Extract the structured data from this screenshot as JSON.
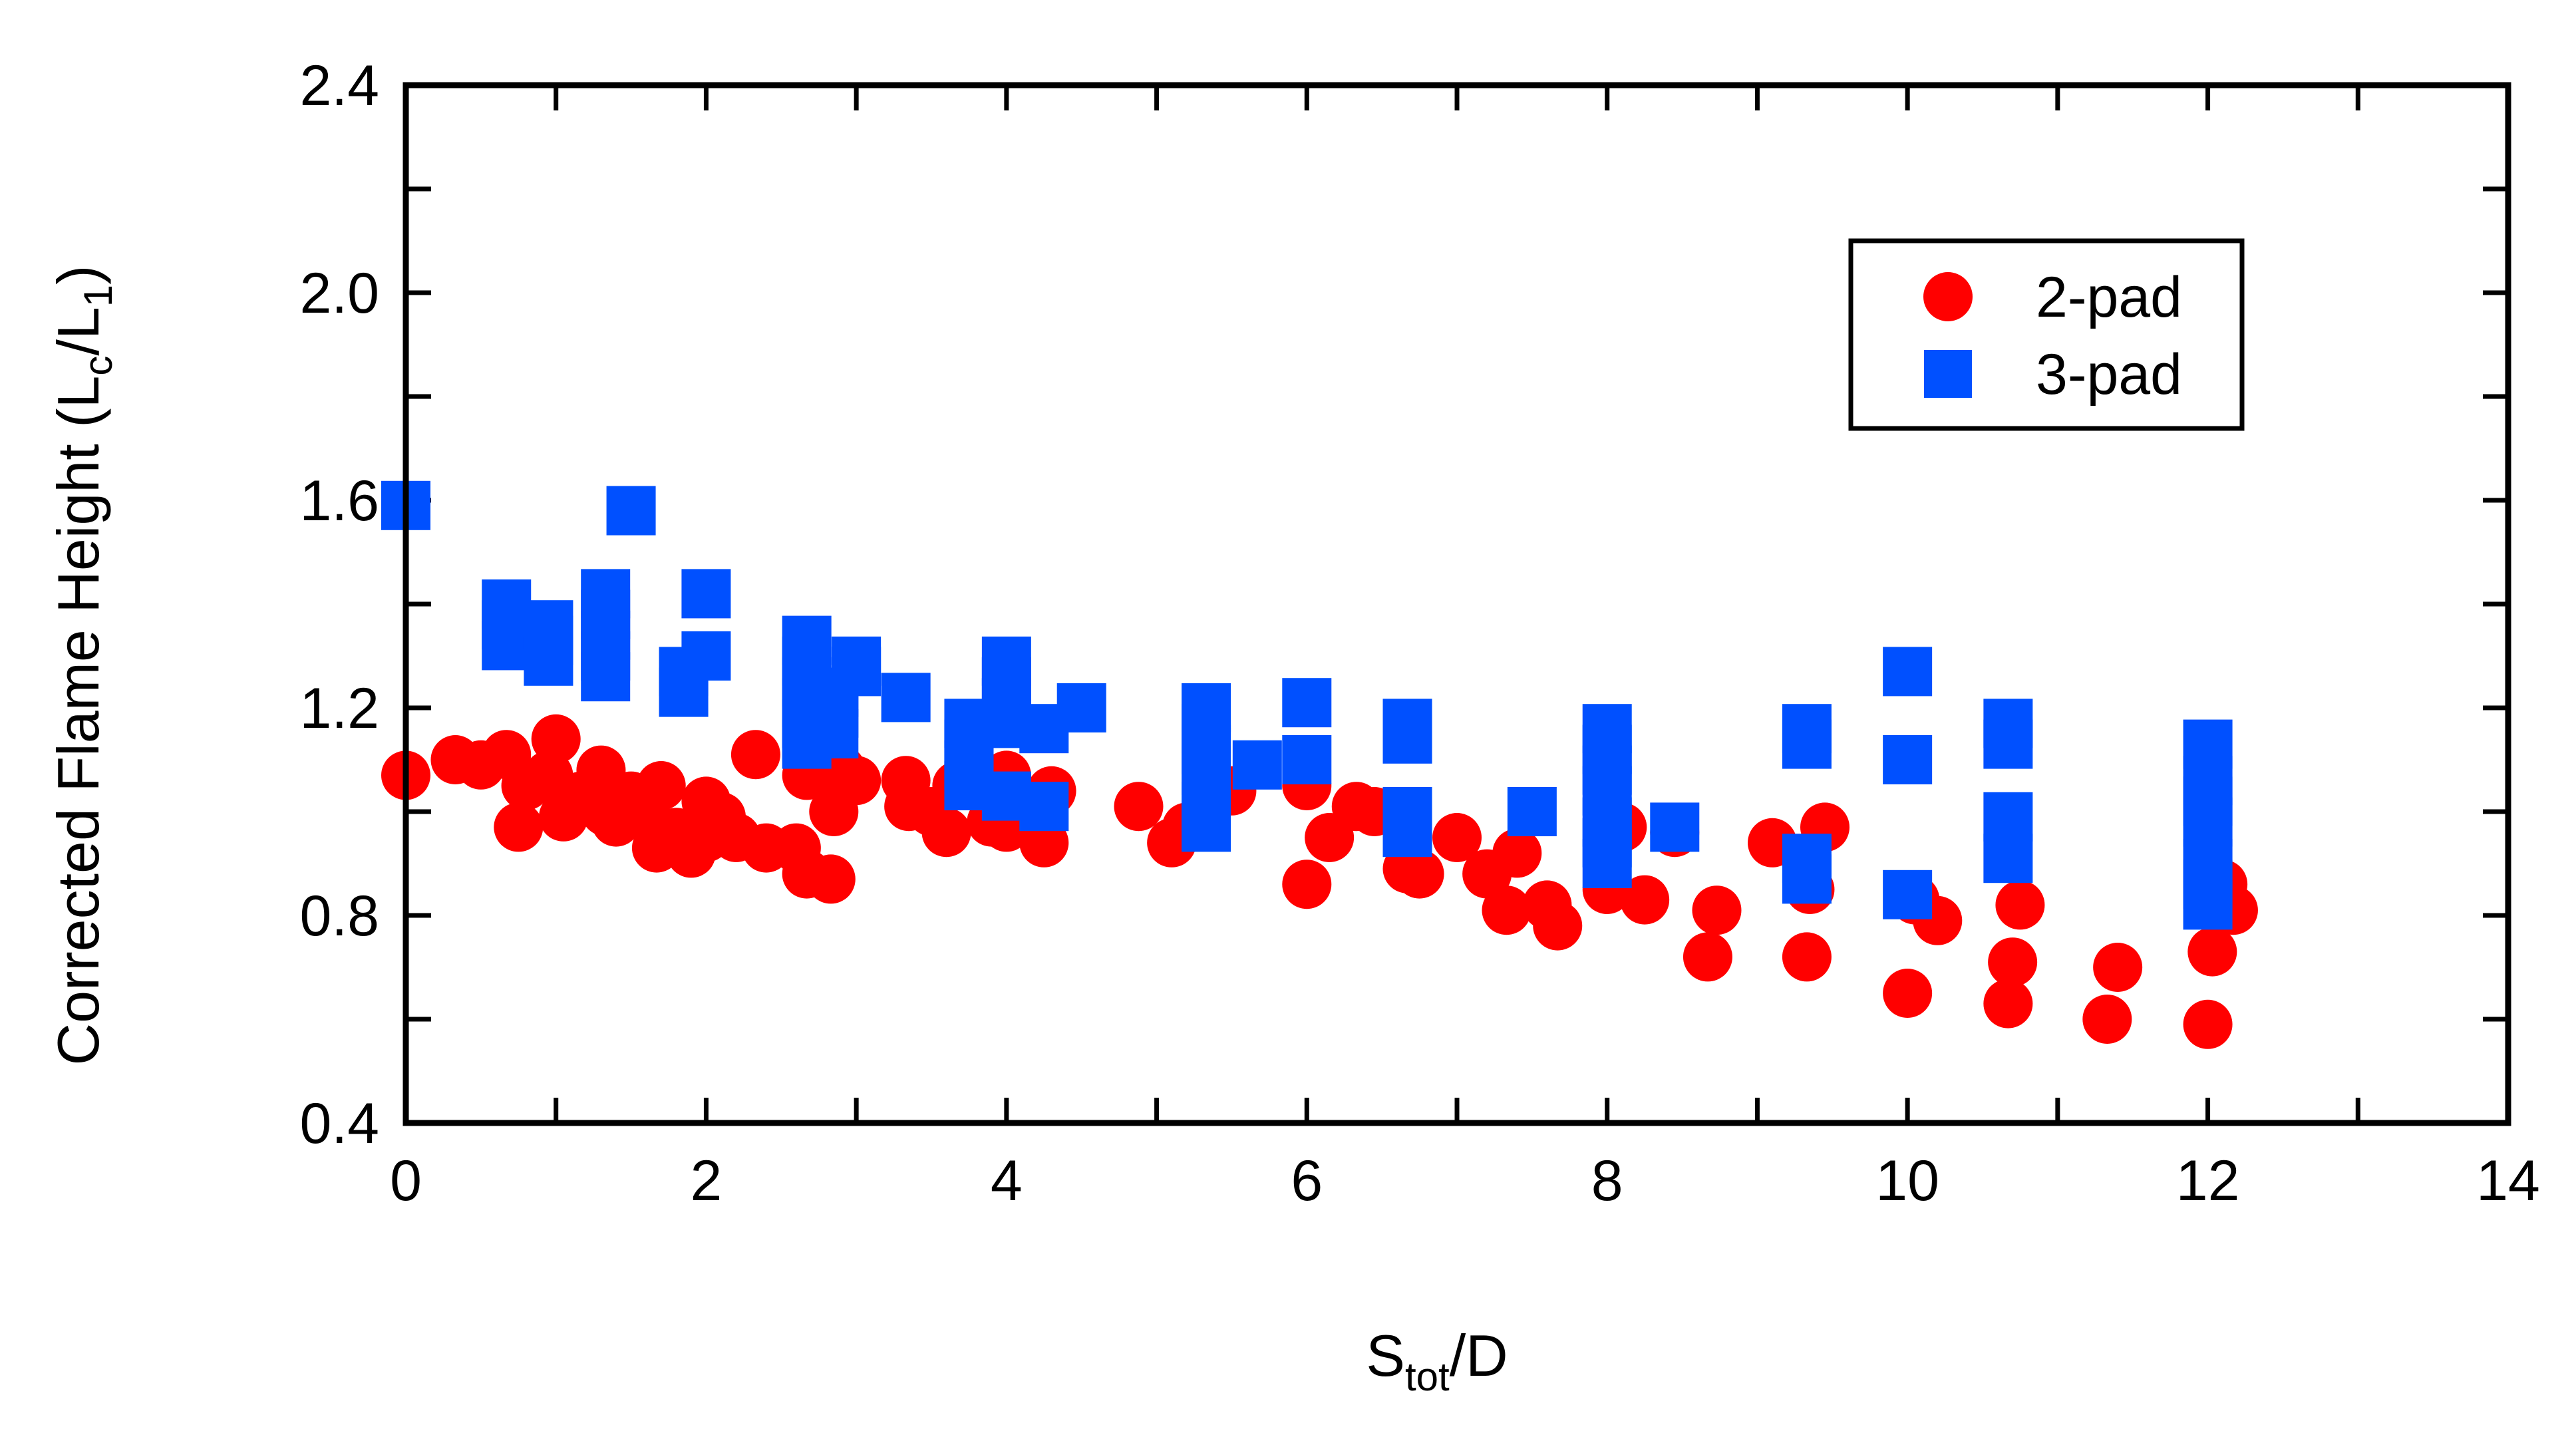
{
  "chart_data": {
    "type": "scatter",
    "xlabel": {
      "main": "S",
      "sub": "tot",
      "rest": "/D"
    },
    "ylabel": {
      "p1": "Corrected Flame Height (L",
      "s1": "c",
      "p2": "/L",
      "s2": "1",
      "p3": ")"
    },
    "xlim": [
      0,
      14
    ],
    "ylim": [
      0.4,
      2.4
    ],
    "xticks": [
      0,
      2,
      4,
      6,
      8,
      10,
      12,
      14
    ],
    "yticks": [
      0.4,
      0.8,
      1.2,
      1.6,
      2.0,
      2.4
    ],
    "xtick_labels": [
      "0",
      "2",
      "4",
      "6",
      "8",
      "10",
      "12",
      "14"
    ],
    "ytick_labels": [
      "0.4",
      "0.8",
      "1.2",
      "1.6",
      "2.0",
      "2.4"
    ],
    "grid": false,
    "legend_position": "top-right",
    "series": [
      {
        "name": "2-pad",
        "marker": "circle",
        "color": "#ff0000",
        "points": [
          [
            0.0,
            1.07
          ],
          [
            0.33,
            1.1
          ],
          [
            0.5,
            1.09
          ],
          [
            0.67,
            1.11
          ],
          [
            0.75,
            0.97
          ],
          [
            0.8,
            1.05
          ],
          [
            0.95,
            1.07
          ],
          [
            1.0,
            1.14
          ],
          [
            1.05,
            0.99
          ],
          [
            1.17,
            1.03
          ],
          [
            1.3,
            1.08
          ],
          [
            1.33,
            1.0
          ],
          [
            1.4,
            0.98
          ],
          [
            1.5,
            1.03
          ],
          [
            1.6,
            0.99
          ],
          [
            1.67,
            0.93
          ],
          [
            1.7,
            1.05
          ],
          [
            1.8,
            0.96
          ],
          [
            1.85,
            0.94
          ],
          [
            1.9,
            0.92
          ],
          [
            2.0,
            0.95
          ],
          [
            2.0,
            1.02
          ],
          [
            2.1,
            0.99
          ],
          [
            2.2,
            0.95
          ],
          [
            2.33,
            1.11
          ],
          [
            2.4,
            0.93
          ],
          [
            2.6,
            0.93
          ],
          [
            2.67,
            0.88
          ],
          [
            2.67,
            1.07
          ],
          [
            2.8,
            1.1
          ],
          [
            2.83,
            0.87
          ],
          [
            2.85,
            1.0
          ],
          [
            2.9,
            1.08
          ],
          [
            3.0,
            1.06
          ],
          [
            3.33,
            1.06
          ],
          [
            3.35,
            1.01
          ],
          [
            3.5,
            1.0
          ],
          [
            3.6,
            0.96
          ],
          [
            3.67,
            1.05
          ],
          [
            4.0,
            1.07
          ],
          [
            4.0,
            1.03
          ],
          [
            3.9,
            0.98
          ],
          [
            4.0,
            0.97
          ],
          [
            4.25,
            0.94
          ],
          [
            4.3,
            1.04
          ],
          [
            4.88,
            1.01
          ],
          [
            5.1,
            0.94
          ],
          [
            5.2,
            0.97
          ],
          [
            5.33,
            1.16
          ],
          [
            5.5,
            1.04
          ],
          [
            6.0,
            0.86
          ],
          [
            6.0,
            1.05
          ],
          [
            6.15,
            0.95
          ],
          [
            6.33,
            1.01
          ],
          [
            6.45,
            1.0
          ],
          [
            6.67,
            0.89
          ],
          [
            6.75,
            0.88
          ],
          [
            7.0,
            0.95
          ],
          [
            7.2,
            0.88
          ],
          [
            7.33,
            0.81
          ],
          [
            7.4,
            0.92
          ],
          [
            7.6,
            0.82
          ],
          [
            7.67,
            0.78
          ],
          [
            8.0,
            0.85
          ],
          [
            8.1,
            0.97
          ],
          [
            8.25,
            0.83
          ],
          [
            8.45,
            0.96
          ],
          [
            8.67,
            0.72
          ],
          [
            8.73,
            0.81
          ],
          [
            9.1,
            0.94
          ],
          [
            9.33,
            0.72
          ],
          [
            9.35,
            0.85
          ],
          [
            9.45,
            0.97
          ],
          [
            10.0,
            0.65
          ],
          [
            10.05,
            0.83
          ],
          [
            10.2,
            0.79
          ],
          [
            10.67,
            0.63
          ],
          [
            10.7,
            0.71
          ],
          [
            10.75,
            0.82
          ],
          [
            11.33,
            0.6
          ],
          [
            11.4,
            0.7
          ],
          [
            12.0,
            0.59
          ],
          [
            12.03,
            0.73
          ],
          [
            12.1,
            0.86
          ],
          [
            12.17,
            0.81
          ]
        ]
      },
      {
        "name": "3-pad",
        "marker": "square",
        "color": "#0050ff",
        "points": [
          [
            0.0,
            1.59
          ],
          [
            0.67,
            1.32
          ],
          [
            0.67,
            1.36
          ],
          [
            0.67,
            1.4
          ],
          [
            0.95,
            1.29
          ],
          [
            0.95,
            1.33
          ],
          [
            0.95,
            1.36
          ],
          [
            1.33,
            1.26
          ],
          [
            1.33,
            1.3
          ],
          [
            1.33,
            1.34
          ],
          [
            1.33,
            1.38
          ],
          [
            1.33,
            1.42
          ],
          [
            1.5,
            1.58
          ],
          [
            1.85,
            1.23
          ],
          [
            1.85,
            1.27
          ],
          [
            2.0,
            1.3
          ],
          [
            2.0,
            1.42
          ],
          [
            2.67,
            1.13
          ],
          [
            2.67,
            1.17
          ],
          [
            2.67,
            1.21
          ],
          [
            2.67,
            1.25
          ],
          [
            2.67,
            1.29
          ],
          [
            2.67,
            1.33
          ],
          [
            2.85,
            1.15
          ],
          [
            2.85,
            1.19
          ],
          [
            2.85,
            1.23
          ],
          [
            3.0,
            1.27
          ],
          [
            3.0,
            1.29
          ],
          [
            3.33,
            1.22
          ],
          [
            3.75,
            1.05
          ],
          [
            3.75,
            1.09
          ],
          [
            3.75,
            1.13
          ],
          [
            3.75,
            1.17
          ],
          [
            4.0,
            1.03
          ],
          [
            4.0,
            1.17
          ],
          [
            4.0,
            1.21
          ],
          [
            4.0,
            1.25
          ],
          [
            4.0,
            1.29
          ],
          [
            4.25,
            1.01
          ],
          [
            4.25,
            1.16
          ],
          [
            4.5,
            1.2
          ],
          [
            5.33,
            0.97
          ],
          [
            5.33,
            1.01
          ],
          [
            5.33,
            1.08
          ],
          [
            5.33,
            1.12
          ],
          [
            5.33,
            1.16
          ],
          [
            5.33,
            1.2
          ],
          [
            5.67,
            1.09
          ],
          [
            6.0,
            1.1
          ],
          [
            6.0,
            1.21
          ],
          [
            6.67,
            0.96
          ],
          [
            6.67,
            1.0
          ],
          [
            6.67,
            1.14
          ],
          [
            6.67,
            1.17
          ],
          [
            7.5,
            1.0
          ],
          [
            8.0,
            0.9
          ],
          [
            8.0,
            0.94
          ],
          [
            8.0,
            0.98
          ],
          [
            8.0,
            1.04
          ],
          [
            8.0,
            1.08
          ],
          [
            8.0,
            1.12
          ],
          [
            8.0,
            1.16
          ],
          [
            8.45,
            0.97
          ],
          [
            9.33,
            0.87
          ],
          [
            9.33,
            0.91
          ],
          [
            9.33,
            1.13
          ],
          [
            9.33,
            1.16
          ],
          [
            10.0,
            0.84
          ],
          [
            10.0,
            1.1
          ],
          [
            10.0,
            1.27
          ],
          [
            10.67,
            0.91
          ],
          [
            10.67,
            0.99
          ],
          [
            10.67,
            1.13
          ],
          [
            10.67,
            1.17
          ],
          [
            12.0,
            0.82
          ],
          [
            12.0,
            0.86
          ],
          [
            12.0,
            0.9
          ],
          [
            12.0,
            0.98
          ],
          [
            12.0,
            1.02
          ],
          [
            12.0,
            1.06
          ],
          [
            12.0,
            1.13
          ]
        ]
      }
    ]
  }
}
